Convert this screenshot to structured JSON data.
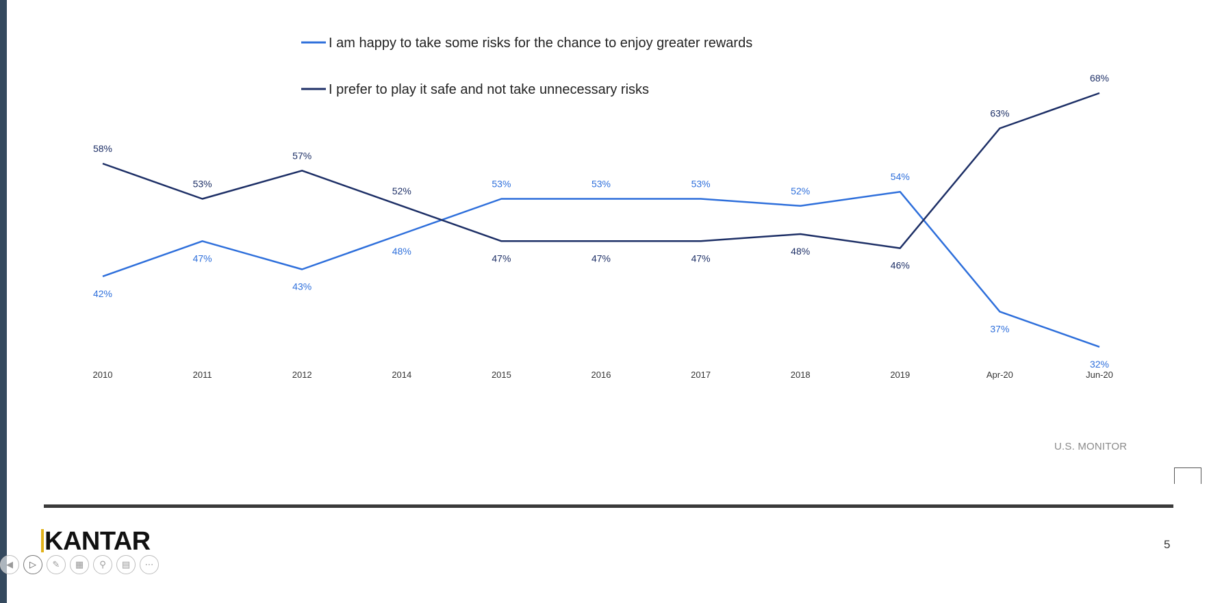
{
  "chart_data": {
    "type": "line",
    "categories": [
      "2010",
      "2011",
      "2012",
      "2014",
      "2015",
      "2016",
      "2017",
      "2018",
      "2019",
      "Apr-20",
      "Jun-20"
    ],
    "series": [
      {
        "name": "I am happy to take some risks for the chance to enjoy greater rewards",
        "color": "#2e6fdb",
        "values": [
          42,
          47,
          43,
          48,
          53,
          53,
          53,
          52,
          54,
          37,
          32
        ],
        "labels": [
          "42%",
          "47%",
          "43%",
          "48%",
          "53%",
          "53%",
          "53%",
          "52%",
          "54%",
          "37%",
          "32%"
        ]
      },
      {
        "name": "I prefer to play it safe and not take unnecessary risks",
        "color": "#1d2f66",
        "values": [
          58,
          53,
          57,
          52,
          47,
          47,
          47,
          48,
          46,
          63,
          68
        ],
        "labels": [
          "58%",
          "53%",
          "57%",
          "52%",
          "47%",
          "47%",
          "47%",
          "48%",
          "46%",
          "63%",
          "68%"
        ]
      }
    ],
    "legend_position": "top-center",
    "grid": false
  },
  "source_note": "U.S. MONITOR",
  "brand": "KANTAR",
  "page_number": "5",
  "nav_icons": [
    "back-icon",
    "play-icon",
    "pen-icon",
    "slides-icon",
    "zoom-icon",
    "caption-icon",
    "more-icon"
  ]
}
